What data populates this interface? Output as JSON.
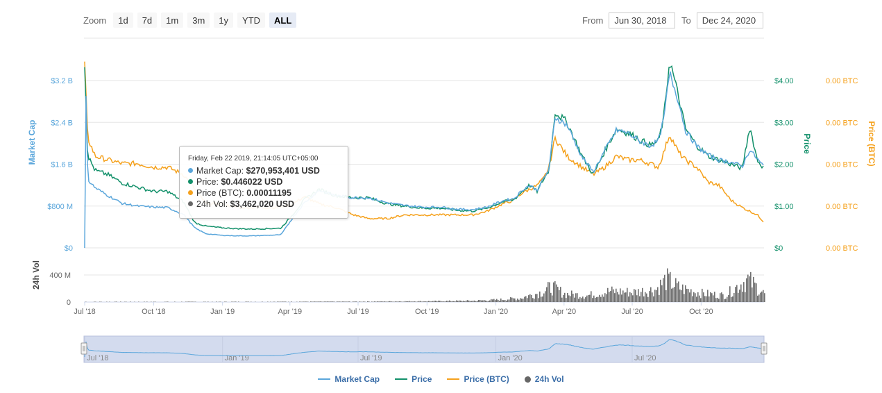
{
  "zoom": {
    "label": "Zoom",
    "buttons": [
      "1d",
      "7d",
      "1m",
      "3m",
      "1y",
      "YTD",
      "ALL"
    ],
    "active": "ALL"
  },
  "range": {
    "from_label": "From",
    "from_value": "Jun 30, 2018",
    "to_label": "To",
    "to_value": "Dec 24, 2020"
  },
  "tooltip": {
    "header": "Friday, Feb 22 2019, 21:14:05 UTC+05:00",
    "rows": [
      {
        "label": "Market Cap: ",
        "value": "$270,953,401 USD",
        "color": "#5aa6db"
      },
      {
        "label": "Price: ",
        "value": "$0.446022 USD",
        "color": "#12906a"
      },
      {
        "label": "Price (BTC): ",
        "value": "0.00011195",
        "color": "#f5a11c"
      },
      {
        "label": "24h Vol: ",
        "value": "$3,462,020 USD",
        "color": "#666666"
      }
    ]
  },
  "legend": [
    {
      "name": "Market Cap",
      "color": "#5aa6db",
      "kind": "line"
    },
    {
      "name": "Price",
      "color": "#12906a",
      "kind": "line"
    },
    {
      "name": "Price (BTC)",
      "color": "#f5a11c",
      "kind": "line"
    },
    {
      "name": "24h Vol",
      "color": "#666666",
      "kind": "dot"
    }
  ],
  "colors": {
    "market_cap": "#5aa6db",
    "price": "#12906a",
    "price_btc": "#f5a11c",
    "volume": "#6f6f6f",
    "navigator_fill": "#d3dbee",
    "grid": "#e6e6e6"
  },
  "chart_data": {
    "type": "line",
    "x_axis": {
      "ticks": [
        "Jul '18",
        "Oct '18",
        "Jan '19",
        "Apr '19",
        "Jul '19",
        "Oct '19",
        "Jan '20",
        "Apr '20",
        "Jul '20",
        "Oct '20"
      ],
      "range": [
        "2018-06-30",
        "2020-12-24"
      ]
    },
    "y_axes": {
      "market_cap": {
        "label": "Market Cap",
        "ticks": [
          "$0",
          "$800 M",
          "$1.6 B",
          "$2.4 B",
          "$3.2 B"
        ],
        "range": [
          0,
          3200
        ]
      },
      "price": {
        "label": "Price",
        "ticks": [
          "$0",
          "$1.00",
          "$2.00",
          "$3.00",
          "$4.00"
        ],
        "range": [
          0,
          4
        ]
      },
      "price_btc": {
        "label": "Price (BTC)",
        "ticks": [
          "0.00 BTC",
          "0.00 BTC",
          "0.00 BTC",
          "0.00 BTC",
          "0.00 BTC"
        ]
      },
      "volume": {
        "label": "24h Vol",
        "ticks": [
          "0",
          "400 M"
        ],
        "range": [
          0,
          400
        ]
      }
    },
    "navigator_ticks": [
      "Jul '18",
      "Jan '19",
      "Jul '19",
      "Jan '20",
      "Jul '20"
    ],
    "series": [
      {
        "name": "Price",
        "x": [
          "2018-07-01",
          "2018-07-05",
          "2018-07-15",
          "2018-08-01",
          "2018-08-20",
          "2018-09-10",
          "2018-10-01",
          "2018-10-20",
          "2018-11-10",
          "2018-11-25",
          "2018-12-10",
          "2018-12-31",
          "2019-01-20",
          "2019-02-10",
          "2019-03-01",
          "2019-03-20",
          "2019-04-05",
          "2019-04-20",
          "2019-05-10",
          "2019-06-01",
          "2019-06-25",
          "2019-07-15",
          "2019-08-10",
          "2019-09-01",
          "2019-09-25",
          "2019-10-20",
          "2019-11-10",
          "2019-12-01",
          "2019-12-20",
          "2020-01-10",
          "2020-01-25",
          "2020-02-05",
          "2020-02-15",
          "2020-02-25",
          "2020-03-05",
          "2020-03-12",
          "2020-03-20",
          "2020-04-05",
          "2020-04-25",
          "2020-05-10",
          "2020-05-25",
          "2020-06-10",
          "2020-06-25",
          "2020-07-10",
          "2020-07-25",
          "2020-08-05",
          "2020-08-12",
          "2020-08-20",
          "2020-09-01",
          "2020-09-10",
          "2020-09-25",
          "2020-10-10",
          "2020-10-25",
          "2020-11-10",
          "2020-11-25",
          "2020-12-05",
          "2020-12-15",
          "2020-12-24"
        ],
        "values": [
          4.4,
          2.2,
          1.85,
          1.75,
          1.55,
          1.45,
          1.35,
          1.35,
          1.1,
          0.6,
          0.52,
          0.48,
          0.46,
          0.45,
          0.46,
          0.47,
          0.8,
          1.15,
          1.4,
          1.25,
          1.2,
          1.2,
          1.05,
          1.0,
          0.95,
          0.95,
          0.9,
          0.88,
          0.95,
          1.1,
          1.15,
          1.35,
          1.5,
          1.35,
          1.65,
          1.85,
          3.25,
          3.0,
          2.2,
          1.75,
          2.3,
          2.85,
          2.75,
          2.6,
          2.45,
          2.55,
          3.1,
          4.5,
          3.6,
          2.85,
          2.45,
          2.2,
          2.1,
          2.0,
          1.9,
          2.9,
          2.1,
          1.9
        ]
      },
      {
        "name": "Market Cap",
        "x": [
          "2018-07-01",
          "2018-07-03",
          "2018-07-05",
          "2018-07-15",
          "2018-08-01",
          "2018-08-20",
          "2018-09-10",
          "2018-10-01",
          "2018-10-20",
          "2018-11-10",
          "2018-11-25",
          "2018-12-10",
          "2018-12-31",
          "2019-01-20",
          "2019-02-10",
          "2019-03-01",
          "2019-03-20",
          "2019-04-05",
          "2019-04-20",
          "2019-05-10",
          "2019-06-01",
          "2019-06-25",
          "2019-07-15",
          "2019-08-10",
          "2019-09-01",
          "2019-09-25",
          "2019-10-20",
          "2019-11-10",
          "2019-12-01",
          "2019-12-20",
          "2020-01-10",
          "2020-01-25",
          "2020-02-05",
          "2020-02-15",
          "2020-02-25",
          "2020-03-05",
          "2020-03-12",
          "2020-03-20",
          "2020-04-05",
          "2020-04-25",
          "2020-05-10",
          "2020-05-25",
          "2020-06-10",
          "2020-06-25",
          "2020-07-10",
          "2020-07-25",
          "2020-08-05",
          "2020-08-12",
          "2020-08-20",
          "2020-09-01",
          "2020-09-10",
          "2020-09-25",
          "2020-10-10",
          "2020-10-25",
          "2020-11-10",
          "2020-11-25",
          "2020-12-05",
          "2020-12-15",
          "2020-12-24"
        ],
        "values": [
          0,
          3200,
          1300,
          1150,
          1000,
          850,
          800,
          780,
          770,
          640,
          380,
          270,
          240,
          230,
          230,
          240,
          250,
          580,
          860,
          1100,
          1000,
          960,
          960,
          860,
          810,
          780,
          780,
          740,
          730,
          780,
          900,
          940,
          1100,
          1200,
          1100,
          1330,
          1500,
          2500,
          2350,
          1740,
          1450,
          1850,
          2250,
          2200,
          2050,
          1950,
          2050,
          2450,
          3350,
          2800,
          2250,
          1950,
          1780,
          1680,
          1640,
          1560,
          1880,
          1700,
          1550
        ]
      },
      {
        "name": "Price (BTC)",
        "x": [
          "2018-07-01",
          "2018-07-05",
          "2018-07-15",
          "2018-08-01",
          "2018-08-20",
          "2018-09-10",
          "2018-10-01",
          "2018-10-20",
          "2018-11-10",
          "2018-11-25",
          "2018-12-10",
          "2018-12-31",
          "2019-01-20",
          "2019-02-10",
          "2019-03-01",
          "2019-03-20",
          "2019-04-05",
          "2019-04-20",
          "2019-05-10",
          "2019-06-01",
          "2019-06-25",
          "2019-07-15",
          "2019-08-10",
          "2019-09-01",
          "2019-09-25",
          "2019-10-20",
          "2019-11-10",
          "2019-12-01",
          "2019-12-20",
          "2020-01-10",
          "2020-01-25",
          "2020-02-05",
          "2020-02-15",
          "2020-02-25",
          "2020-03-05",
          "2020-03-12",
          "2020-03-20",
          "2020-04-05",
          "2020-04-25",
          "2020-05-10",
          "2020-05-25",
          "2020-06-10",
          "2020-06-25",
          "2020-07-10",
          "2020-07-25",
          "2020-08-05",
          "2020-08-12",
          "2020-08-20",
          "2020-09-01",
          "2020-09-10",
          "2020-09-25",
          "2020-10-10",
          "2020-10-25",
          "2020-11-10",
          "2020-11-25",
          "2020-12-05",
          "2020-12-15",
          "2020-12-24"
        ],
        "values": [
          0.0005,
          0.0003,
          0.00025,
          0.00024,
          0.00023,
          0.00023,
          0.00022,
          0.00022,
          0.0002,
          0.00016,
          0.00012,
          0.00012,
          0.00011,
          0.00011,
          0.00011,
          0.00011,
          0.00012,
          0.00014,
          0.00012,
          0.00011,
          9e-05,
          8e-05,
          8e-05,
          9e-05,
          9e-05,
          9e-05,
          9e-05,
          9e-05,
          0.0001,
          0.00012,
          0.00013,
          0.00015,
          0.00016,
          0.00017,
          0.00019,
          0.00022,
          0.0003,
          0.00025,
          0.00022,
          0.0002,
          0.00022,
          0.00025,
          0.00024,
          0.00024,
          0.00023,
          0.00022,
          0.00026,
          0.00031,
          0.00026,
          0.00024,
          0.00022,
          0.00018,
          0.00017,
          0.00013,
          0.00011,
          0.0001,
          9e-05,
          7e-05
        ]
      },
      {
        "name": "24h Vol",
        "x": [
          "2018-07-01",
          "2019-01-01",
          "2019-07-01",
          "2019-10-01",
          "2019-12-01",
          "2020-01-01",
          "2020-02-01",
          "2020-03-01",
          "2020-03-15",
          "2020-04-01",
          "2020-05-01",
          "2020-06-01",
          "2020-07-01",
          "2020-08-01",
          "2020-08-15",
          "2020-09-01",
          "2020-10-01",
          "2020-11-01",
          "2020-12-01",
          "2020-12-24"
        ],
        "values": [
          5,
          5,
          8,
          15,
          25,
          40,
          70,
          180,
          280,
          150,
          120,
          200,
          180,
          230,
          420,
          260,
          160,
          120,
          420,
          150
        ]
      }
    ]
  }
}
